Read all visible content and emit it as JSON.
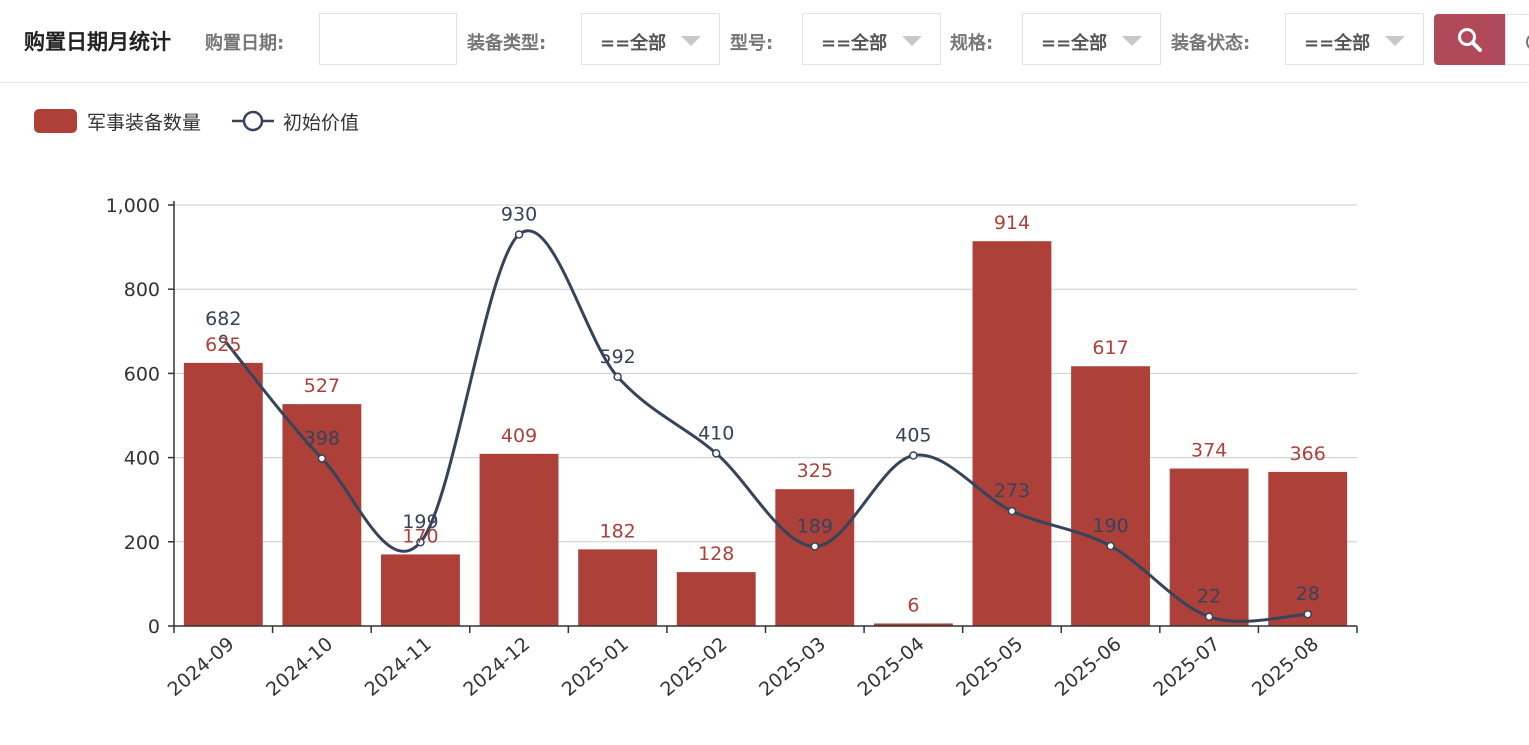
{
  "header": {
    "title": "购置日期月统计",
    "filters": [
      {
        "label": "购置日期:",
        "type": "date",
        "value": ""
      },
      {
        "label": "装备类型:",
        "type": "select",
        "value": "==全部"
      },
      {
        "label": "型号:",
        "type": "select",
        "value": "==全部"
      },
      {
        "label": "规格:",
        "type": "select",
        "value": "==全部"
      },
      {
        "label": "装备状态:",
        "type": "select",
        "value": "==全部"
      }
    ],
    "search_icon": "search-icon"
  },
  "legend": [
    {
      "name": "军事装备数量",
      "color": "#ad413a",
      "shape": "bar"
    },
    {
      "name": "初始价值",
      "color": "#34445a",
      "shape": "line-circle"
    }
  ],
  "chart_data": {
    "type": "bar",
    "title": "",
    "xlabel": "",
    "ylabel": "",
    "categories": [
      "2024-09",
      "2024-10",
      "2024-11",
      "2024-12",
      "2025-01",
      "2025-02",
      "2025-03",
      "2025-04",
      "2025-05",
      "2025-06",
      "2025-07",
      "2025-08"
    ],
    "ylim": [
      0,
      1000
    ],
    "yticks": [
      0,
      200,
      400,
      600,
      800,
      1000
    ],
    "ytick_labels": [
      "0",
      "200",
      "400",
      "600",
      "800",
      "1,000"
    ],
    "grid": true,
    "legend_position": "top-left",
    "series": [
      {
        "name": "军事装备数量",
        "type": "bar",
        "color": "#ad413a",
        "values": [
          625,
          527,
          170,
          409,
          182,
          128,
          325,
          6,
          914,
          617,
          374,
          366
        ],
        "labels": [
          "625",
          "527",
          "170",
          "409",
          "182",
          "128",
          "325",
          "6",
          "914",
          "617",
          "374",
          "366"
        ]
      },
      {
        "name": "初始价值",
        "type": "line",
        "smooth": true,
        "color": "#34445a",
        "values": [
          682,
          398,
          199,
          930,
          592,
          410,
          189,
          405,
          273,
          190,
          22,
          28
        ],
        "labels": [
          "682",
          "398",
          "199",
          "930",
          "592",
          "410",
          "189",
          "405",
          "273",
          "190",
          "22",
          "28"
        ]
      }
    ]
  }
}
